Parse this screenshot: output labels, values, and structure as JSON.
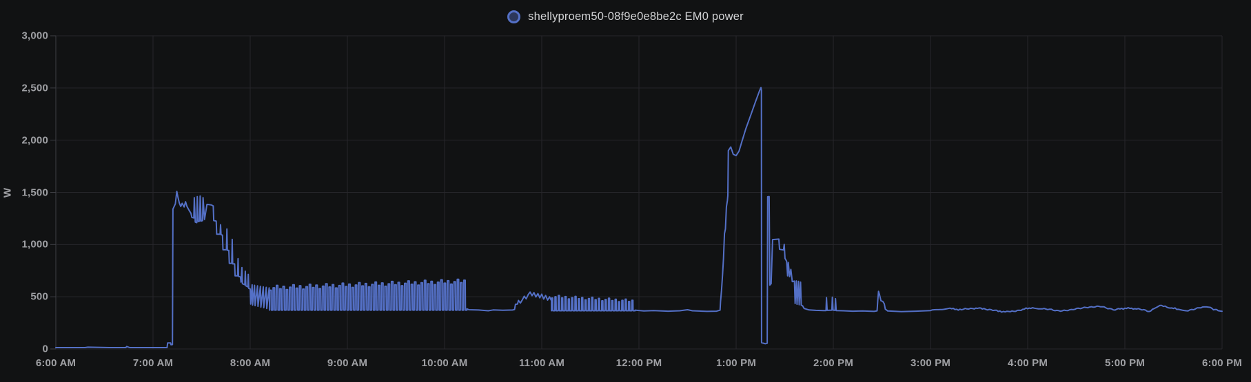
{
  "page": {
    "background": "#111213"
  },
  "chart_data": {
    "type": "line",
    "title": "shellyproem50-08f9e0e8be2c EM0 power",
    "xlabel": "",
    "ylabel": "W",
    "ylim": [
      0,
      3000
    ],
    "xlim_hours": [
      6,
      18
    ],
    "grid": true,
    "legend_position": "top-center",
    "x_ticks": [
      "6:00 AM",
      "7:00 AM",
      "8:00 AM",
      "9:00 AM",
      "10:00 AM",
      "11:00 AM",
      "12:00 PM",
      "1:00 PM",
      "2:00 PM",
      "3:00 PM",
      "4:00 PM",
      "5:00 PM",
      "6:00 PM"
    ],
    "y_ticks": [
      "3,000",
      "2,500",
      "2,000",
      "1,500",
      "1,000",
      "500",
      "0"
    ],
    "colors": {
      "line": "#5470c6",
      "legend_fill": "rgba(84,112,198,0.4)",
      "grid": "#27272b",
      "axis": "#3f4046",
      "tick_label": "#9fa0a4",
      "title": "#d2d3d5"
    },
    "series": [
      {
        "name": "shellyproem50-08f9e0e8be2c EM0 power",
        "unit": "W",
        "color": "#5470c6",
        "segments": [
          {
            "type": "path",
            "points": [
              [
                6.0,
                13
              ],
              [
                6.3,
                13
              ],
              [
                6.33,
                17
              ],
              [
                6.55,
                13
              ],
              [
                6.72,
                13
              ],
              [
                6.73,
                24
              ],
              [
                6.76,
                13
              ],
              [
                7.08,
                13
              ],
              [
                7.145,
                13
              ],
              [
                7.15,
                58
              ],
              [
                7.18,
                58
              ],
              [
                7.185,
                40
              ],
              [
                7.2,
                42
              ],
              [
                7.205,
                1340
              ],
              [
                7.23,
                1390
              ],
              [
                7.245,
                1510
              ],
              [
                7.255,
                1460
              ],
              [
                7.27,
                1400
              ],
              [
                7.285,
                1365
              ],
              [
                7.3,
                1395
              ],
              [
                7.32,
                1360
              ],
              [
                7.335,
                1410
              ],
              [
                7.35,
                1365
              ],
              [
                7.37,
                1330
              ],
              [
                7.39,
                1300
              ],
              [
                7.4,
                1260
              ],
              [
                7.42,
                1255
              ],
              [
                7.425,
                1450
              ],
              [
                7.435,
                1215
              ],
              [
                7.45,
                1210
              ],
              [
                7.455,
                1460
              ],
              [
                7.465,
                1220
              ],
              [
                7.48,
                1225
              ],
              [
                7.485,
                1465
              ],
              [
                7.495,
                1225
              ],
              [
                7.51,
                1230
              ],
              [
                7.515,
                1450
              ],
              [
                7.53,
                1240
              ],
              [
                7.555,
                1385
              ],
              [
                7.6,
                1380
              ],
              [
                7.62,
                1370
              ],
              [
                7.625,
                1230
              ],
              [
                7.65,
                1225
              ],
              [
                7.655,
                1100
              ],
              [
                7.69,
                1100
              ],
              [
                7.695,
                1190
              ],
              [
                7.7,
                1095
              ],
              [
                7.715,
                1090
              ],
              [
                7.72,
                950
              ],
              [
                7.755,
                950
              ],
              [
                7.76,
                1150
              ],
              [
                7.765,
                945
              ],
              [
                7.78,
                945
              ],
              [
                7.785,
                820
              ],
              [
                7.81,
                820
              ],
              [
                7.815,
                1050
              ],
              [
                7.82,
                815
              ],
              [
                7.84,
                815
              ],
              [
                7.845,
                700
              ],
              [
                7.87,
                700
              ],
              [
                7.875,
                865
              ],
              [
                7.88,
                695
              ],
              [
                7.9,
                690
              ],
              [
                7.905,
                640
              ],
              [
                7.915,
                780
              ],
              [
                7.92,
                625
              ],
              [
                7.945,
                615
              ],
              [
                7.95,
                745
              ],
              [
                7.955,
                605
              ],
              [
                7.975,
                595
              ],
              [
                7.98,
                715
              ],
              [
                7.985,
                580
              ],
              [
                8.0,
                575
              ],
              [
                8.005,
                430
              ],
              [
                8.02,
                615
              ],
              [
                8.025,
                420
              ],
              [
                8.045,
                610
              ],
              [
                8.05,
                415
              ],
              [
                8.075,
                605
              ],
              [
                8.08,
                408
              ],
              [
                8.105,
                600
              ],
              [
                8.11,
                400
              ],
              [
                8.135,
                595
              ],
              [
                8.14,
                395
              ],
              [
                8.165,
                590
              ],
              [
                8.17,
                388
              ],
              [
                8.195,
                585
              ],
              [
                8.2,
                378
              ]
            ]
          },
          {
            "type": "pulses",
            "from": 8.2,
            "to": 10.23,
            "low": 372,
            "high_start": 585,
            "high_end": 648,
            "teeth": 60,
            "duty": 0.45,
            "variation": 22
          },
          {
            "type": "path",
            "points": [
              [
                10.23,
                385
              ],
              [
                10.25,
                376
              ],
              [
                10.35,
                373
              ],
              [
                10.45,
                366
              ],
              [
                10.5,
                374
              ],
              [
                10.6,
                371
              ],
              [
                10.7,
                373
              ],
              [
                10.72,
                378
              ],
              [
                10.73,
                428
              ],
              [
                10.75,
                430
              ],
              [
                10.76,
                465
              ],
              [
                10.78,
                440
              ],
              [
                10.8,
                470
              ],
              [
                10.82,
                505
              ],
              [
                10.84,
                480
              ],
              [
                10.86,
                520
              ],
              [
                10.88,
                545
              ],
              [
                10.9,
                510
              ],
              [
                10.92,
                540
              ],
              [
                10.94,
                498
              ],
              [
                10.96,
                530
              ],
              [
                10.98,
                490
              ],
              [
                11.0,
                525
              ],
              [
                11.02,
                478
              ],
              [
                11.04,
                512
              ],
              [
                11.06,
                468
              ],
              [
                11.08,
                500
              ],
              [
                11.1,
                462
              ]
            ]
          },
          {
            "type": "pulses",
            "from": 11.1,
            "to": 11.96,
            "low": 366,
            "high_start": 502,
            "high_end": 460,
            "teeth": 25,
            "duty": 0.32,
            "variation": 14
          },
          {
            "type": "path",
            "points": [
              [
                11.96,
                372
              ],
              [
                12.05,
                364
              ],
              [
                12.15,
                368
              ],
              [
                12.3,
                362
              ],
              [
                12.42,
                366
              ],
              [
                12.5,
                376
              ],
              [
                12.55,
                366
              ],
              [
                12.7,
                360
              ],
              [
                12.8,
                362
              ],
              [
                12.835,
                372
              ],
              [
                12.84,
                455
              ],
              [
                12.85,
                560
              ],
              [
                12.86,
                710
              ],
              [
                12.87,
                870
              ],
              [
                12.88,
                1105
              ],
              [
                12.89,
                1150
              ],
              [
                12.9,
                1360
              ],
              [
                12.91,
                1420
              ],
              [
                12.915,
                1470
              ],
              [
                12.92,
                1900
              ],
              [
                12.945,
                1935
              ],
              [
                12.97,
                1865
              ],
              [
                13.0,
                1852
              ],
              [
                13.03,
                1895
              ],
              [
                13.06,
                1990
              ],
              [
                13.1,
                2110
              ],
              [
                13.15,
                2240
              ],
              [
                13.2,
                2370
              ],
              [
                13.24,
                2470
              ],
              [
                13.255,
                2505
              ],
              [
                13.26,
                2480
              ],
              [
                13.262,
                60
              ],
              [
                13.3,
                50
              ],
              [
                13.32,
                55
              ],
              [
                13.325,
                1458
              ],
              [
                13.34,
                1460
              ],
              [
                13.347,
                612
              ],
              [
                13.36,
                625
              ],
              [
                13.375,
                1048
              ],
              [
                13.44,
                1052
              ],
              [
                13.447,
                955
              ],
              [
                13.487,
                948
              ],
              [
                13.495,
                1002
              ],
              [
                13.503,
                868
              ],
              [
                13.52,
                840
              ],
              [
                13.53,
                700
              ],
              [
                13.537,
                828
              ],
              [
                13.55,
                692
              ],
              [
                13.563,
                762
              ],
              [
                13.578,
                645
              ],
              [
                13.6,
                650
              ],
              [
                13.607,
                435
              ],
              [
                13.62,
                652
              ],
              [
                13.627,
                428
              ],
              [
                13.642,
                648
              ],
              [
                13.649,
                424
              ],
              [
                13.663,
                640
              ],
              [
                13.67,
                420
              ],
              [
                13.685,
                412
              ],
              [
                13.7,
                388
              ],
              [
                13.75,
                374
              ],
              [
                13.82,
                370
              ],
              [
                13.9,
                367
              ],
              [
                13.925,
                368
              ],
              [
                13.93,
                492
              ],
              [
                13.937,
                370
              ],
              [
                13.985,
                372
              ],
              [
                13.99,
                496
              ],
              [
                13.998,
                372
              ],
              [
                14.018,
                370
              ],
              [
                14.023,
                482
              ],
              [
                14.03,
                368
              ],
              [
                14.1,
                366
              ],
              [
                14.2,
                362
              ],
              [
                14.3,
                364
              ],
              [
                14.42,
                360
              ],
              [
                14.45,
                365
              ],
              [
                14.458,
                472
              ],
              [
                14.465,
                552
              ],
              [
                14.475,
                522
              ],
              [
                14.49,
                462
              ],
              [
                14.51,
                455
              ],
              [
                14.525,
                432
              ],
              [
                14.535,
                382
              ],
              [
                14.56,
                364
              ],
              [
                14.7,
                358
              ],
              [
                14.85,
                362
              ],
              [
                15.0,
                368
              ]
            ]
          },
          {
            "type": "wiggle",
            "jitter": 8,
            "step": 0.02,
            "points": [
              [
                15.0,
                368
              ],
              [
                15.1,
                380
              ],
              [
                15.2,
                386
              ],
              [
                15.32,
                376
              ],
              [
                15.45,
                391
              ],
              [
                15.55,
                387
              ],
              [
                15.68,
                363
              ],
              [
                15.82,
                355
              ],
              [
                15.95,
                380
              ],
              [
                16.05,
                396
              ],
              [
                16.15,
                384
              ],
              [
                16.3,
                368
              ],
              [
                16.45,
                372
              ],
              [
                16.6,
                402
              ],
              [
                16.75,
                404
              ],
              [
                16.9,
                378
              ],
              [
                17.0,
                390
              ],
              [
                17.12,
                386
              ],
              [
                17.25,
                359
              ],
              [
                17.3,
                390
              ],
              [
                17.36,
                415
              ],
              [
                17.45,
                398
              ],
              [
                17.55,
                380
              ],
              [
                17.65,
                372
              ],
              [
                17.8,
                398
              ],
              [
                17.88,
                392
              ],
              [
                17.96,
                368
              ],
              [
                18.0,
                360
              ]
            ]
          }
        ]
      }
    ]
  }
}
